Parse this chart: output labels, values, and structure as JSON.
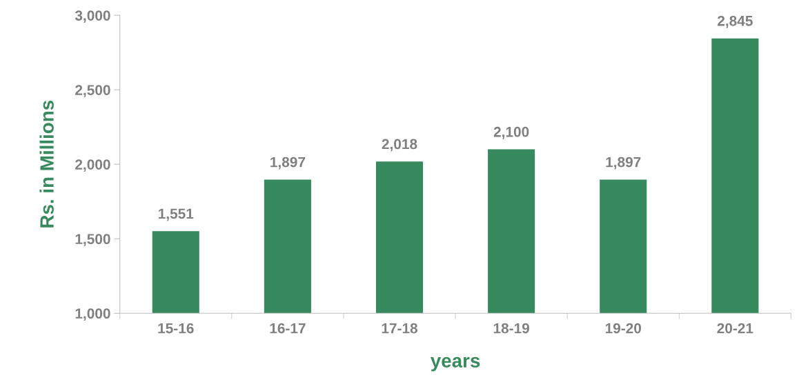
{
  "chart_data": {
    "type": "bar",
    "categories": [
      "15-16",
      "16-17",
      "17-18",
      "18-19",
      "19-20",
      "20-21"
    ],
    "values": [
      1551,
      1897,
      2018,
      2100,
      1897,
      2845
    ],
    "value_labels": [
      "1,551",
      "1,897",
      "2,018",
      "2,100",
      "1,897",
      "2,845"
    ],
    "color": "#37895e",
    "xlabel": "years",
    "ylabel": "Rs. in Millions",
    "ylim": [
      1000,
      3000
    ],
    "yticks": [
      {
        "value": 1000,
        "label": "1,000"
      },
      {
        "value": 1500,
        "label": "1,500"
      },
      {
        "value": 2000,
        "label": "2,000"
      },
      {
        "value": 2500,
        "label": "2,500"
      },
      {
        "value": 3000,
        "label": "3,000"
      }
    ],
    "grid": false,
    "legend": false
  }
}
